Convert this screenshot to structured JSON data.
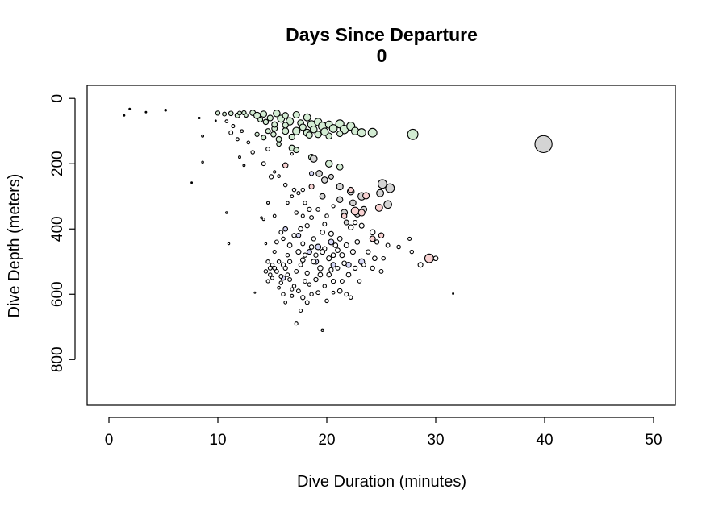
{
  "chart_data": {
    "type": "scatter",
    "title": "Days Since Departure",
    "subtitle": "0",
    "xlabel": "Dive Duration (minutes)",
    "ylabel": "Dive Depth (meters)",
    "xlim": [
      -2,
      52
    ],
    "ylim": [
      940,
      -40
    ],
    "y_reversed": true,
    "x_ticks": [
      0,
      10,
      20,
      30,
      40,
      50
    ],
    "y_ticks": [
      0,
      200,
      400,
      600,
      800
    ],
    "grid": false,
    "legend": "none",
    "colors": {
      "green": "#d3ecd3",
      "gray": "#d4d4d4",
      "pink": "#f8d2d2",
      "blue": "#d4d6f6",
      "white": "#ffffff"
    },
    "series": [
      {
        "color": "green",
        "points": [
          [
            10,
            45,
            2.6
          ],
          [
            10.6,
            48,
            2.4
          ],
          [
            11.2,
            46,
            2.8
          ],
          [
            11.8,
            52,
            3
          ],
          [
            12.4,
            44,
            2.6
          ],
          [
            13.2,
            44,
            3.4
          ],
          [
            13.6,
            52,
            4
          ],
          [
            14.2,
            48,
            3.8
          ],
          [
            14.8,
            60,
            3.6
          ],
          [
            15.4,
            46,
            4.2
          ],
          [
            15.8,
            62,
            4.4
          ],
          [
            16.2,
            52,
            3.6
          ],
          [
            16.6,
            70,
            4.6
          ],
          [
            17.2,
            50,
            4
          ],
          [
            17.6,
            75,
            3.8
          ],
          [
            18.2,
            58,
            4.4
          ],
          [
            18.6,
            80,
            4.8
          ],
          [
            19.2,
            72,
            4.6
          ],
          [
            19.6,
            85,
            5
          ],
          [
            20.2,
            80,
            4.4
          ],
          [
            20.6,
            92,
            4.8
          ],
          [
            21.2,
            78,
            5
          ],
          [
            21.6,
            95,
            5.2
          ],
          [
            22.2,
            85,
            5
          ],
          [
            22.6,
            100,
            4.6
          ],
          [
            23.2,
            105,
            5
          ],
          [
            24.2,
            105,
            5.4
          ],
          [
            13.6,
            110,
            2.6
          ],
          [
            14.6,
            100,
            3
          ],
          [
            15.2,
            92,
            3.4
          ],
          [
            16.2,
            100,
            4
          ],
          [
            17.2,
            100,
            4.6
          ],
          [
            18.2,
            105,
            4.4
          ],
          [
            19.2,
            110,
            4
          ],
          [
            20.2,
            115,
            3.8
          ],
          [
            21.2,
            108,
            3.6
          ],
          [
            14.2,
            120,
            3
          ],
          [
            15.6,
            125,
            3.4
          ],
          [
            16.8,
            118,
            3.6
          ],
          [
            18.8,
            95,
            4.2
          ],
          [
            19.8,
            102,
            4.6
          ],
          [
            16.8,
            152,
            3.6
          ],
          [
            17.2,
            158,
            3.4
          ],
          [
            18.6,
            180,
            3.6
          ],
          [
            20.2,
            200,
            4.2
          ],
          [
            21.2,
            210,
            3.8
          ],
          [
            27.9,
            110,
            6.4
          ],
          [
            12,
            45,
            2.4
          ],
          [
            12.6,
            52,
            2.2
          ],
          [
            14.4,
            72,
            3.2
          ],
          [
            15.2,
            80,
            3.4
          ],
          [
            16.2,
            82,
            3.6
          ],
          [
            17.8,
            88,
            4
          ],
          [
            18.4,
            112,
            3.8
          ],
          [
            13.9,
            65,
            3
          ],
          [
            15.6,
            140,
            2.8
          ],
          [
            15.1,
            110,
            3.2
          ]
        ]
      },
      {
        "color": "gray",
        "points": [
          [
            39.9,
            140,
            10.6
          ],
          [
            18.8,
            185,
            4.2
          ],
          [
            19.3,
            230,
            3.8
          ],
          [
            19.8,
            250,
            3.8
          ],
          [
            20.4,
            240,
            3
          ],
          [
            21.2,
            270,
            4
          ],
          [
            22.2,
            285,
            4.2
          ],
          [
            23.2,
            300,
            4.6
          ],
          [
            24.9,
            290,
            4.4
          ],
          [
            25.1,
            262,
            5.4
          ],
          [
            25.8,
            275,
            5.4
          ],
          [
            25.6,
            325,
            4.8
          ],
          [
            21.6,
            350,
            4
          ],
          [
            22.4,
            320,
            3.8
          ],
          [
            19.6,
            300,
            3.4
          ],
          [
            21.8,
            380,
            3
          ],
          [
            23.4,
            340,
            3.6
          ],
          [
            21.2,
            310,
            3.6
          ],
          [
            22.8,
            355,
            3.4
          ]
        ]
      },
      {
        "color": "pink",
        "points": [
          [
            16.2,
            205,
            3.2
          ],
          [
            18.6,
            270,
            3
          ],
          [
            22.6,
            345,
            4.8
          ],
          [
            23.2,
            350,
            4
          ],
          [
            24.8,
            335,
            4.4
          ],
          [
            24.2,
            430,
            3.4
          ],
          [
            25,
            420,
            3.2
          ],
          [
            29.4,
            490,
            5.4
          ],
          [
            23.6,
            298,
            4
          ],
          [
            22.2,
            280,
            3.2
          ],
          [
            21.6,
            360,
            3.2
          ]
        ]
      },
      {
        "color": "blue",
        "points": [
          [
            18.6,
            230,
            2.6
          ],
          [
            20.4,
            440,
            3.4
          ],
          [
            19.2,
            455,
            3.4
          ],
          [
            22,
            510,
            3.2
          ],
          [
            18.4,
            470,
            3
          ],
          [
            20.6,
            510,
            3
          ],
          [
            17.4,
            420,
            2.8
          ],
          [
            16.2,
            400,
            2.8
          ],
          [
            23.2,
            500,
            3.6
          ],
          [
            19,
            500,
            3.2
          ],
          [
            16,
            550,
            2.8
          ]
        ]
      },
      {
        "color": "white",
        "points": [
          [
            11.2,
            105,
            2.4
          ],
          [
            11.8,
            125,
            2
          ],
          [
            12.2,
            100,
            1.8
          ],
          [
            10.8,
            70,
            1.8
          ],
          [
            11.4,
            85,
            2
          ],
          [
            12.8,
            135,
            1.8
          ],
          [
            13.2,
            165,
            2.2
          ],
          [
            12.4,
            205,
            1.4
          ],
          [
            8.6,
            115,
            1.4
          ],
          [
            8.6,
            195,
            1.2
          ],
          [
            12,
            180,
            1.4
          ],
          [
            14.6,
            155,
            2.4
          ],
          [
            14.2,
            200,
            2.4
          ],
          [
            14.9,
            240,
            2.6
          ],
          [
            15.2,
            225,
            1.6
          ],
          [
            15.6,
            238,
            1.8
          ],
          [
            16.2,
            265,
            2.2
          ],
          [
            17,
            280,
            2.2
          ],
          [
            17.4,
            290,
            2
          ],
          [
            16.8,
            300,
            1.8
          ],
          [
            17.8,
            280,
            2.2
          ],
          [
            16.4,
            320,
            1.8
          ],
          [
            18,
            320,
            2.2
          ],
          [
            18.4,
            340,
            2.6
          ],
          [
            17.2,
            350,
            2.2
          ],
          [
            17.8,
            360,
            2
          ],
          [
            18.6,
            365,
            2.4
          ],
          [
            19.2,
            340,
            2.4
          ],
          [
            20,
            360,
            2.2
          ],
          [
            20.6,
            330,
            2
          ],
          [
            22.6,
            380,
            2.6
          ],
          [
            22.2,
            395,
            3.2
          ],
          [
            23.2,
            390,
            3
          ],
          [
            24.2,
            410,
            3.2
          ],
          [
            24.6,
            440,
            2.6
          ],
          [
            25.6,
            450,
            2.4
          ],
          [
            26.6,
            455,
            2.2
          ],
          [
            27.8,
            470,
            2.2
          ],
          [
            27.6,
            430,
            2
          ],
          [
            28.6,
            510,
            3
          ],
          [
            30,
            490,
            2.8
          ],
          [
            25.2,
            490,
            2.2
          ],
          [
            24.2,
            520,
            2.6
          ],
          [
            24.4,
            490,
            2.8
          ],
          [
            23.8,
            470,
            2.6
          ],
          [
            22.4,
            470,
            3
          ],
          [
            21.4,
            480,
            3
          ],
          [
            20.8,
            450,
            2.8
          ],
          [
            19.6,
            410,
            2.8
          ],
          [
            21.2,
            430,
            2.8
          ],
          [
            20.4,
            415,
            3
          ],
          [
            19.8,
            385,
            2.4
          ],
          [
            18.2,
            390,
            2.6
          ],
          [
            17.6,
            400,
            2.8
          ],
          [
            17,
            420,
            2.6
          ],
          [
            15.8,
            410,
            2.4
          ],
          [
            16.6,
            450,
            2.8
          ],
          [
            17.4,
            470,
            3
          ],
          [
            18,
            480,
            2.6
          ],
          [
            18.8,
            500,
            3
          ],
          [
            19.4,
            520,
            3.2
          ],
          [
            20.2,
            540,
            2.8
          ],
          [
            20.6,
            560,
            2.6
          ],
          [
            21.2,
            590,
            2.8
          ],
          [
            21.8,
            600,
            2.4
          ],
          [
            22.2,
            610,
            2.2
          ],
          [
            15,
            510,
            2.2
          ],
          [
            15.4,
            530,
            2.4
          ],
          [
            15.8,
            545,
            2.4
          ],
          [
            16.2,
            520,
            2.6
          ],
          [
            16.6,
            555,
            2.4
          ],
          [
            17,
            575,
            2.2
          ],
          [
            17.4,
            590,
            2.4
          ],
          [
            17.8,
            610,
            2.6
          ],
          [
            18.2,
            625,
            2.4
          ],
          [
            18.6,
            600,
            2.2
          ],
          [
            16.8,
            605,
            2
          ],
          [
            16.2,
            625,
            1.8
          ],
          [
            17.6,
            650,
            2
          ],
          [
            17.2,
            690,
            2
          ],
          [
            19.6,
            710,
            1.6
          ],
          [
            14.6,
            560,
            2
          ],
          [
            14.8,
            540,
            2.2
          ],
          [
            15.6,
            580,
            1.8
          ],
          [
            16,
            600,
            2.2
          ],
          [
            18.4,
            570,
            2.2
          ],
          [
            19,
            555,
            2.6
          ],
          [
            19.8,
            575,
            2.2
          ],
          [
            20.6,
            595,
            1.8
          ],
          [
            21.4,
            560,
            2.4
          ],
          [
            22,
            540,
            2.8
          ],
          [
            22.6,
            520,
            2.6
          ],
          [
            23.4,
            510,
            2.4
          ],
          [
            25,
            530,
            2.4
          ],
          [
            23,
            560,
            2.2
          ],
          [
            16.4,
            480,
            2.2
          ],
          [
            15.2,
            470,
            2
          ],
          [
            16,
            430,
            2.2
          ],
          [
            15.4,
            440,
            2.4
          ],
          [
            14.4,
            445,
            1.2
          ],
          [
            11,
            445,
            1.2
          ],
          [
            10.8,
            350,
            1.2
          ],
          [
            14,
            365,
            1.2
          ],
          [
            14.2,
            370,
            1.6
          ],
          [
            15.2,
            360,
            1.8
          ],
          [
            14.6,
            320,
            1.6
          ],
          [
            31.6,
            598,
            0.9
          ],
          [
            13.4,
            595,
            0.9
          ],
          [
            16.8,
            170,
            1.6
          ],
          [
            17.6,
            510,
            2.4
          ],
          [
            18.2,
            535,
            2.6
          ],
          [
            19.2,
            595,
            2.4
          ],
          [
            20,
            620,
            2.2
          ],
          [
            21,
            520,
            2.4
          ],
          [
            19.8,
            460,
            2.6
          ],
          [
            20.6,
            480,
            2.8
          ],
          [
            21.8,
            450,
            3
          ],
          [
            22.8,
            440,
            2.8
          ],
          [
            18.8,
            430,
            2.6
          ],
          [
            17.8,
            445,
            2.4
          ],
          [
            16.6,
            500,
            2.6
          ],
          [
            17.2,
            530,
            2.4
          ],
          [
            15.6,
            500,
            2.2
          ],
          [
            14.8,
            520,
            2.4
          ],
          [
            16,
            510,
            2.6
          ],
          [
            16.4,
            540,
            2.2
          ],
          [
            15.2,
            520,
            2.4
          ],
          [
            14.6,
            500,
            2.2
          ],
          [
            14.4,
            530,
            2.2
          ],
          [
            15,
            550,
            2
          ],
          [
            15.8,
            565,
            2.2
          ],
          [
            16.8,
            585,
            2
          ],
          [
            18,
            560,
            2.4
          ],
          [
            19.4,
            540,
            2.8
          ],
          [
            20.4,
            525,
            2.6
          ],
          [
            21.6,
            505,
            2.8
          ],
          [
            19,
            480,
            2.6
          ],
          [
            17.8,
            495,
            2.8
          ],
          [
            18.6,
            455,
            2.8
          ],
          [
            19.6,
            470,
            3
          ],
          [
            20.2,
            490,
            3
          ],
          [
            21,
            465,
            2.8
          ]
        ]
      },
      {
        "color": "tiny",
        "points": [
          [
            1.4,
            52,
            0.9
          ],
          [
            1.9,
            32,
            0.9
          ],
          [
            3.4,
            42,
            0.9
          ],
          [
            5.2,
            36,
            1.2
          ],
          [
            7.6,
            258,
            0.9
          ],
          [
            9.8,
            68,
            0.9
          ],
          [
            8.3,
            60,
            0.9
          ]
        ]
      }
    ]
  }
}
